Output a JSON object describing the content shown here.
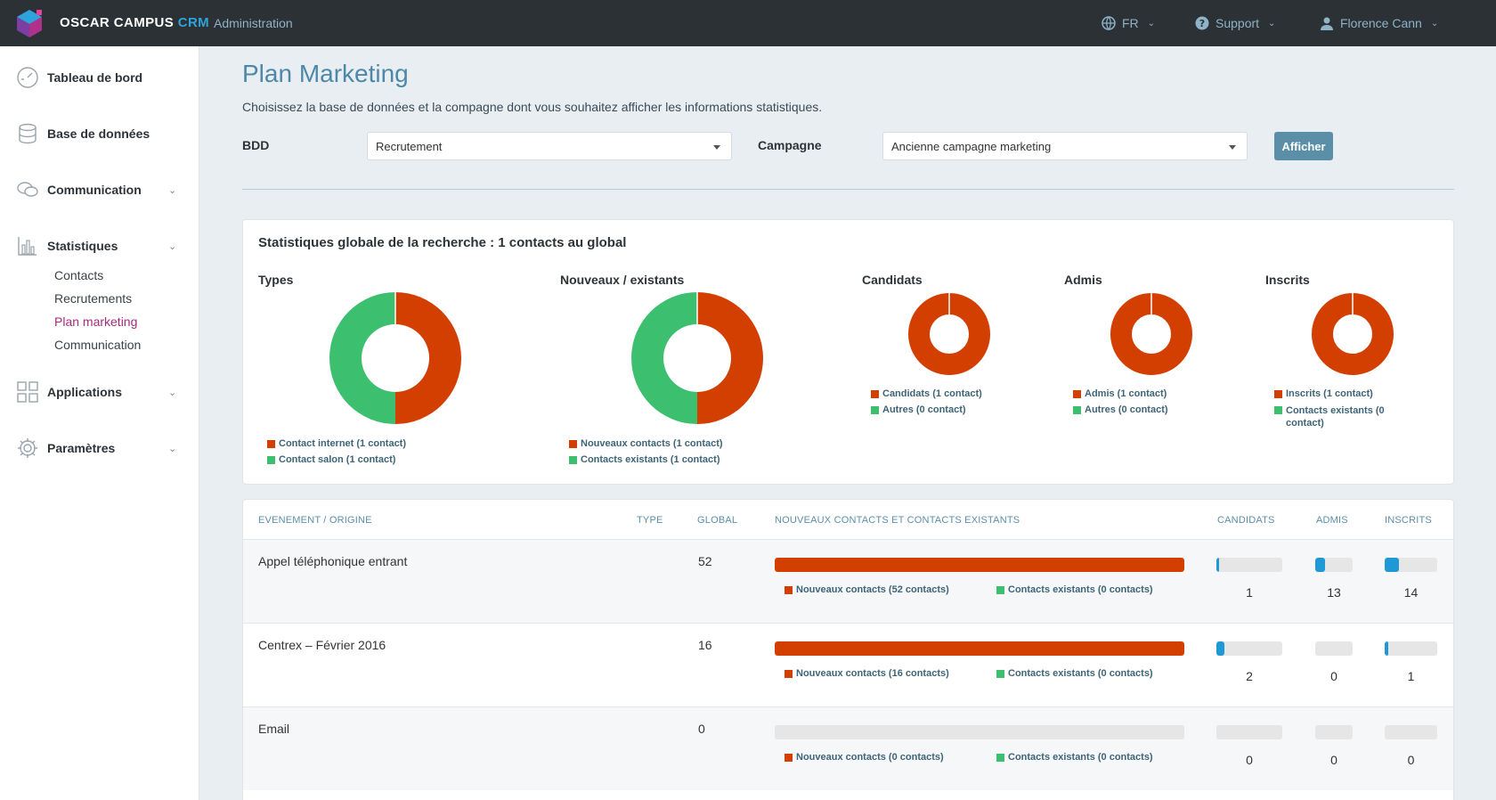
{
  "colors": {
    "red": "#d23f00",
    "green": "#3cbf6e",
    "blue": "#1f99d6",
    "track": "#e6e6e6"
  },
  "topbar": {
    "brand_main": "OSCAR CAMPUS",
    "brand_crm": "CRM",
    "admin": "Administration",
    "lang": "FR",
    "support": "Support",
    "user": "Florence Cann"
  },
  "sidebar": {
    "items": [
      {
        "label": "Tableau de bord",
        "icon": "dashboard-icon"
      },
      {
        "label": "Base de données",
        "icon": "database-icon"
      },
      {
        "label": "Communication",
        "icon": "chat-icon"
      },
      {
        "label": "Statistiques",
        "icon": "chart-icon"
      },
      {
        "label": "Applications",
        "icon": "apps-icon"
      },
      {
        "label": "Paramètres",
        "icon": "gear-icon"
      }
    ],
    "sub_items": [
      "Contacts",
      "Recrutements",
      "Plan marketing",
      "Communication"
    ]
  },
  "page": {
    "title": "Plan Marketing",
    "description": "Choisissez la base de données et la compagne dont vous souhaitez afficher les informations statistiques.",
    "bdd_label": "BDD",
    "bdd_value": "Recrutement",
    "campaign_label": "Campagne",
    "campaign_value": "Ancienne campagne marketing",
    "show_button": "Afficher"
  },
  "stats": {
    "title": "Statistiques globale de la recherche : 1 contacts au global",
    "charts": [
      {
        "title": "Types",
        "values": [
          1,
          1
        ],
        "legend": [
          "Contact internet (1 contact)",
          "Contact salon (1 contact)"
        ]
      },
      {
        "title": "Nouveaux / existants",
        "values": [
          1,
          1
        ],
        "legend": [
          "Nouveaux contacts (1 contact)",
          "Contacts existants (1 contact)"
        ]
      },
      {
        "title": "Candidats",
        "values": [
          1,
          0
        ],
        "legend": [
          "Candidats (1 contact)",
          "Autres (0 contact)"
        ]
      },
      {
        "title": "Admis",
        "values": [
          1,
          0
        ],
        "legend": [
          "Admis (1 contact)",
          "Autres (0 contact)"
        ]
      },
      {
        "title": "Inscrits",
        "values": [
          1,
          0
        ],
        "legend": [
          "Inscrits (1 contact)",
          "Contacts existants (0 contact)"
        ]
      }
    ]
  },
  "table": {
    "headers": {
      "event": "EVENEMENT / ORIGINE",
      "type": "TYPE",
      "global": "GLOBAL",
      "new_existing": "NOUVEAUX CONTACTS ET CONTACTS EXISTANTS",
      "candidats": "CANDIDATS",
      "admis": "ADMIS",
      "inscrits": "INSCRITS"
    },
    "rows": [
      {
        "name": "Appel téléphonique entrant",
        "global": "52",
        "new_fraction": 1.0,
        "new_label": "Nouveaux contacts (52 contacts)",
        "existing_label": "Contacts existants (0 contacts)",
        "candidats": "1",
        "candidats_fraction": 0.02,
        "admis": "13",
        "admis_fraction": 0.25,
        "inscrits": "14",
        "inscrits_fraction": 0.27
      },
      {
        "name": "Centrex – Février 2016",
        "global": "16",
        "new_fraction": 1.0,
        "new_label": "Nouveaux contacts (16 contacts)",
        "existing_label": "Contacts existants (0 contacts)",
        "candidats": "2",
        "candidats_fraction": 0.12,
        "admis": "0",
        "admis_fraction": 0,
        "inscrits": "1",
        "inscrits_fraction": 0.06
      },
      {
        "name": "Email",
        "global": "0",
        "new_fraction": 0,
        "new_label": "Nouveaux contacts (0 contacts)",
        "existing_label": "Contacts existants (0 contacts)",
        "candidats": "0",
        "candidats_fraction": 0,
        "admis": "0",
        "admis_fraction": 0,
        "inscrits": "0",
        "inscrits_fraction": 0
      }
    ]
  }
}
